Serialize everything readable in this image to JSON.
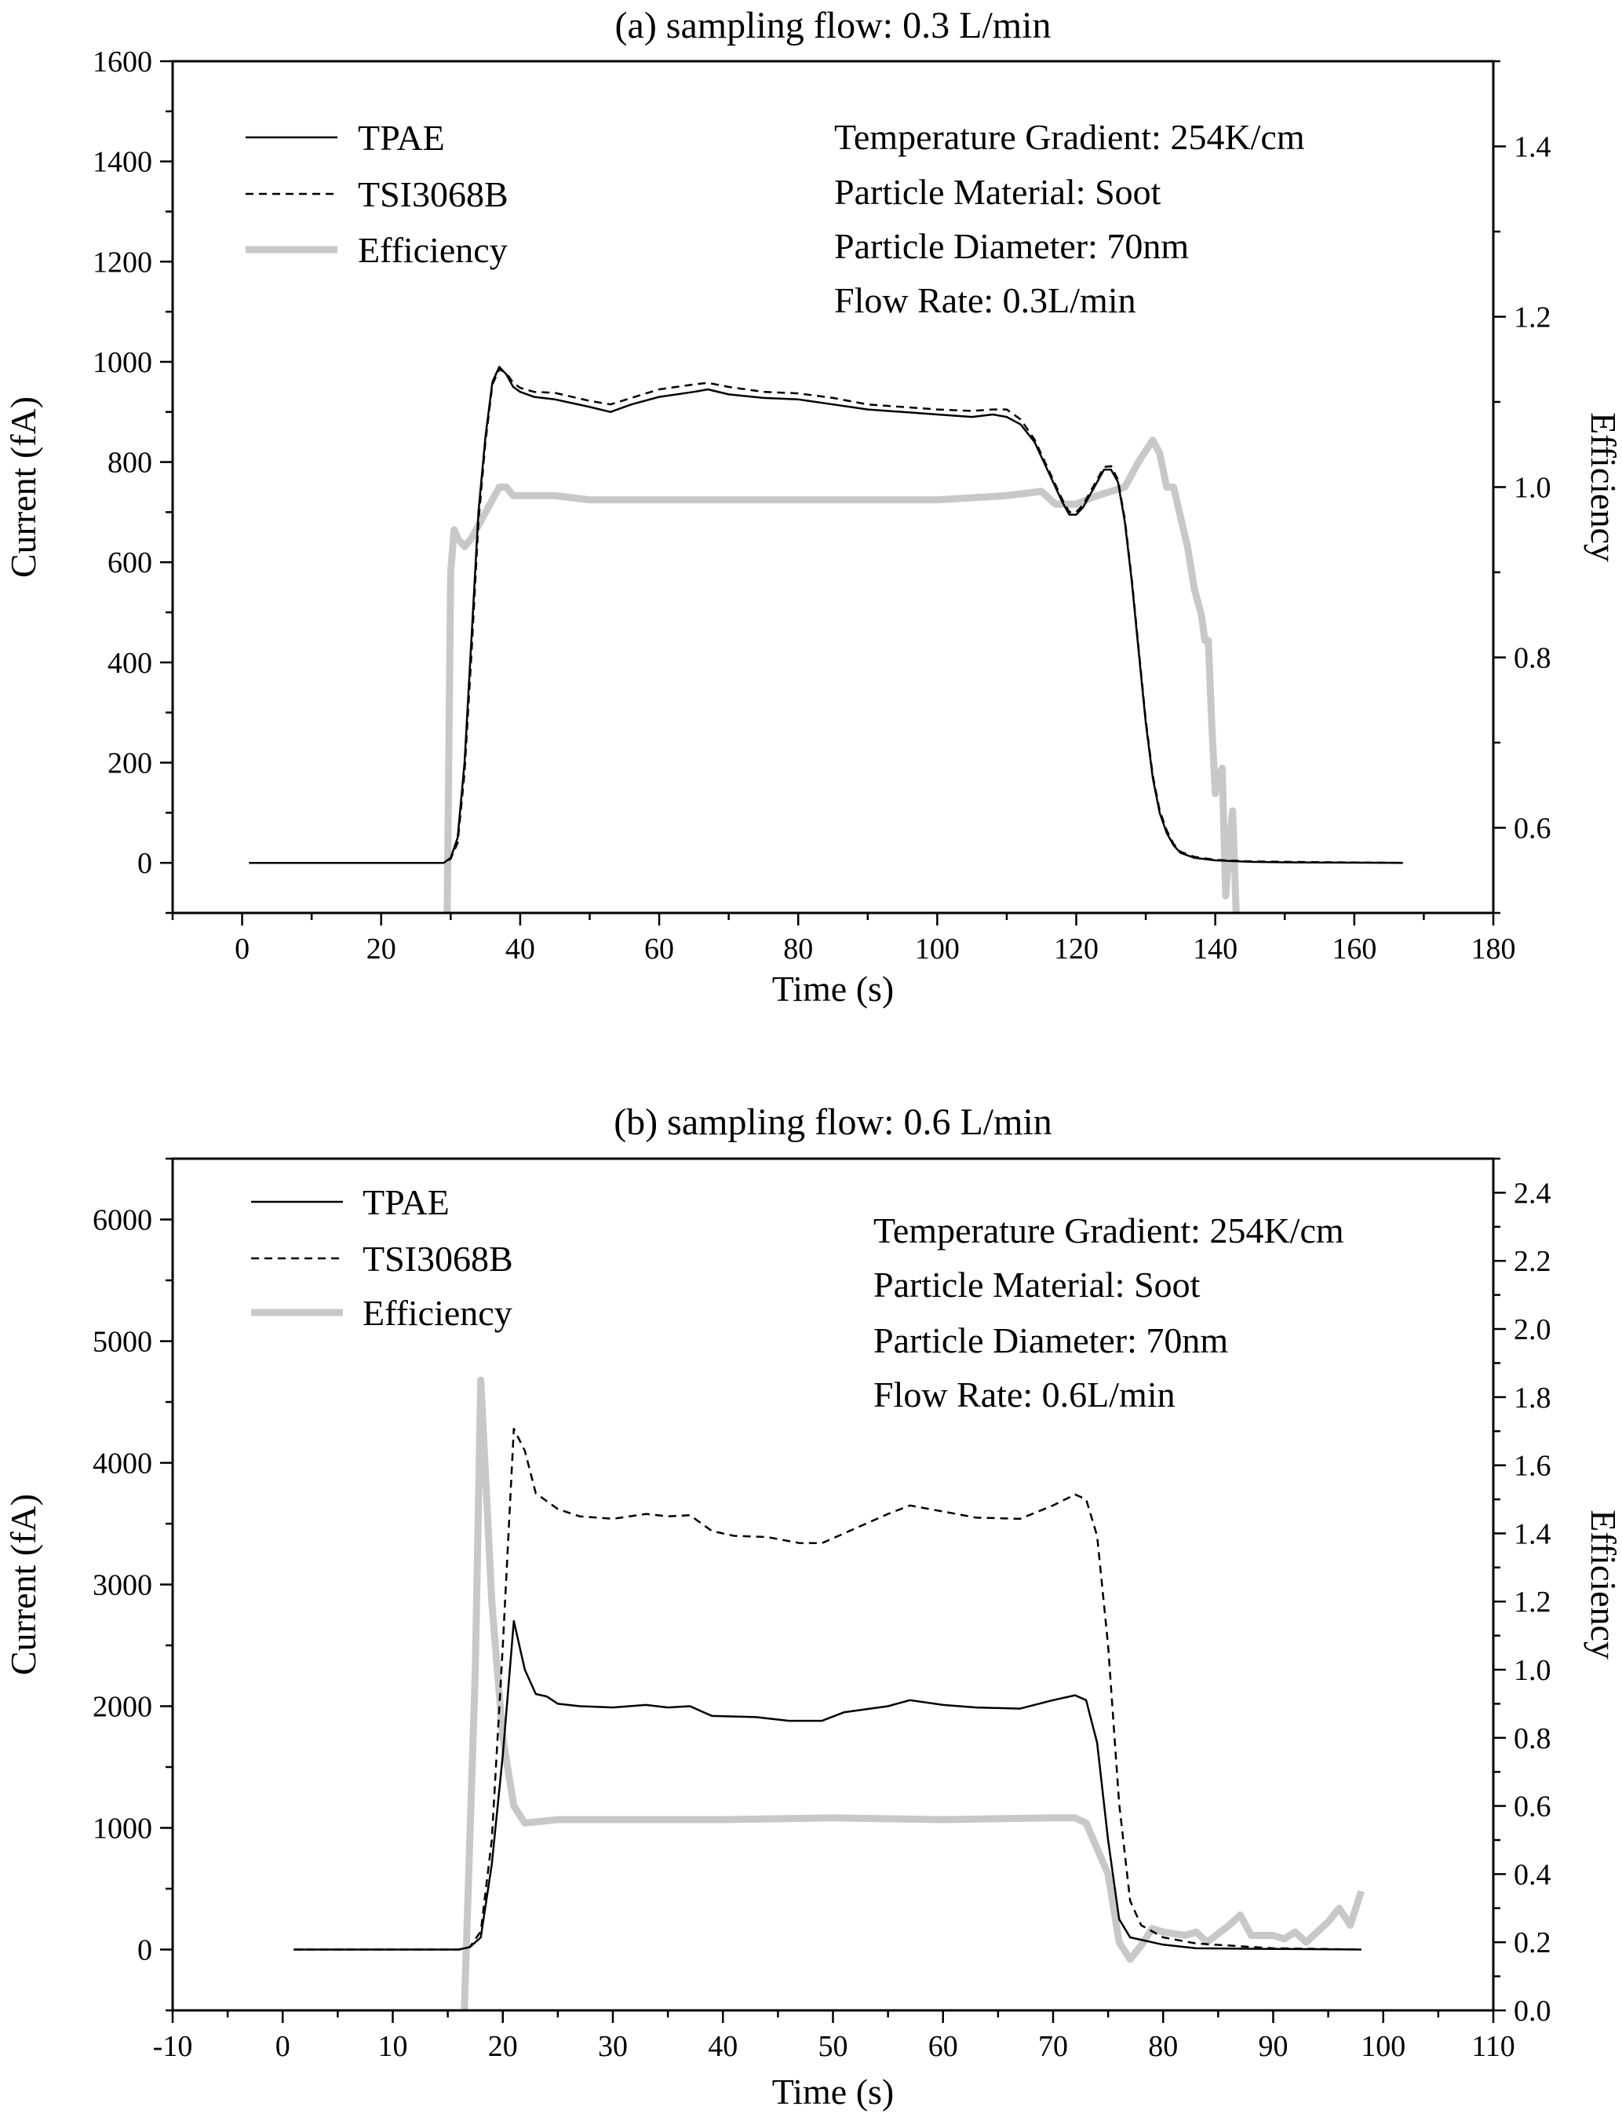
{
  "chart_data": [
    {
      "type": "line",
      "title": "(a) sampling flow: 0.3 L/min",
      "xlabel": "Time (s)",
      "ylabel": "Current (fA)",
      "y2label": "Efficiency",
      "xlim": [
        -10,
        180
      ],
      "ylim": [
        -100,
        1600
      ],
      "y2lim": [
        0.5,
        1.5
      ],
      "xticks": [
        0,
        20,
        40,
        60,
        80,
        100,
        120,
        140,
        160,
        180
      ],
      "yticks": [
        0,
        200,
        400,
        600,
        800,
        1000,
        1200,
        1400,
        1600
      ],
      "y2ticks": [
        "0.6",
        "0.8",
        "1.0",
        "1.2",
        "1.4"
      ],
      "grid": false,
      "legend_position": "top-left",
      "annotations": [
        "Temperature Gradient: 254K/cm",
        "Particle Material: Soot",
        "Particle Diameter: 70nm",
        "Flow Rate: 0.3L/min"
      ],
      "series": [
        {
          "name": "TPAE",
          "style": "solid",
          "color": "#000000",
          "axis": "left",
          "x": [
            1,
            29,
            30,
            31,
            32,
            33,
            34,
            35,
            36,
            37,
            38,
            39,
            40,
            42,
            45,
            50,
            53,
            56,
            60,
            65,
            67,
            70,
            75,
            80,
            85,
            90,
            95,
            100,
            105,
            108,
            110,
            112,
            114,
            116,
            118,
            119,
            120,
            121,
            123,
            124,
            125,
            126,
            127,
            128,
            129,
            130,
            131,
            132,
            133,
            134,
            135,
            137,
            140,
            145,
            150,
            167
          ],
          "y": [
            0,
            0,
            10,
            50,
            200,
            450,
            700,
            850,
            960,
            990,
            975,
            950,
            940,
            930,
            925,
            910,
            900,
            915,
            930,
            940,
            945,
            935,
            928,
            925,
            915,
            905,
            900,
            895,
            890,
            895,
            890,
            875,
            840,
            780,
            720,
            695,
            695,
            710,
            760,
            785,
            785,
            760,
            680,
            560,
            420,
            280,
            170,
            100,
            60,
            35,
            20,
            10,
            5,
            2,
            1,
            0
          ]
        },
        {
          "name": "TSI3068B",
          "style": "dashed",
          "color": "#000000",
          "axis": "left",
          "x": [
            1,
            29,
            30,
            31,
            32,
            33,
            34,
            35,
            36,
            37,
            38,
            39,
            40,
            42,
            45,
            50,
            53,
            56,
            60,
            65,
            67,
            70,
            75,
            80,
            85,
            90,
            95,
            100,
            105,
            108,
            110,
            112,
            114,
            116,
            118,
            119,
            120,
            121,
            123,
            124,
            125,
            126,
            127,
            128,
            129,
            130,
            131,
            132,
            133,
            134,
            135,
            137,
            140,
            145,
            150,
            167
          ],
          "y": [
            0,
            0,
            8,
            40,
            180,
            420,
            680,
            840,
            955,
            985,
            978,
            958,
            948,
            940,
            938,
            922,
            915,
            928,
            945,
            955,
            958,
            950,
            940,
            937,
            928,
            915,
            910,
            905,
            902,
            905,
            905,
            885,
            845,
            785,
            725,
            700,
            700,
            715,
            765,
            790,
            792,
            765,
            685,
            565,
            425,
            285,
            175,
            105,
            65,
            38,
            22,
            12,
            6,
            3,
            2,
            0
          ]
        },
        {
          "name": "Efficiency",
          "style": "solid-thick",
          "color": "#c8c8c8",
          "axis": "right",
          "x": [
            29.5,
            30,
            30.5,
            31,
            32,
            33,
            35,
            37,
            38,
            39,
            45,
            50,
            55,
            60,
            70,
            80,
            90,
            100,
            110,
            115,
            117,
            120,
            123,
            127,
            129,
            131,
            132,
            133,
            134,
            136,
            137,
            138,
            138.5,
            139,
            139.5,
            140,
            140.5,
            141,
            141.5,
            142,
            142.5,
            143
          ],
          "y": [
            0.5,
            0.9,
            0.95,
            0.94,
            0.93,
            0.94,
            0.97,
            1.0,
            1.0,
            0.99,
            0.99,
            0.985,
            0.985,
            0.985,
            0.985,
            0.985,
            0.985,
            0.985,
            0.99,
            0.995,
            0.98,
            0.98,
            0.99,
            1.0,
            1.03,
            1.055,
            1.04,
            1.0,
            1.0,
            0.93,
            0.88,
            0.85,
            0.82,
            0.82,
            0.72,
            0.64,
            0.66,
            0.67,
            0.52,
            0.58,
            0.62,
            0.5
          ]
        }
      ]
    },
    {
      "type": "line",
      "title": "(b) sampling flow: 0.6 L/min",
      "xlabel": "Time (s)",
      "ylabel": "Current (fA)",
      "y2label": "Efficiency",
      "xlim": [
        -10,
        110
      ],
      "ylim": [
        -500,
        6500
      ],
      "y2lim": [
        0,
        2.5
      ],
      "xticks": [
        -10,
        0,
        10,
        20,
        30,
        40,
        50,
        60,
        70,
        80,
        90,
        100,
        110
      ],
      "yticks": [
        0,
        1000,
        2000,
        3000,
        4000,
        5000,
        6000
      ],
      "y2ticks": [
        "0.0",
        "0.2",
        "0.4",
        "0.6",
        "0.8",
        "1.0",
        "1.2",
        "1.4",
        "1.6",
        "1.8",
        "2.0",
        "2.2",
        "2.4"
      ],
      "grid": false,
      "legend_position": "top-left",
      "annotations": [
        "Temperature Gradient: 254K/cm",
        "Particle Material: Soot",
        "Particle Diameter: 70nm",
        "Flow Rate: 0.6L/min"
      ],
      "series": [
        {
          "name": "TPAE",
          "style": "solid",
          "color": "#000000",
          "axis": "left",
          "x": [
            1,
            16,
            17,
            18,
            19,
            20,
            21,
            22,
            23,
            24,
            25,
            27,
            30,
            33,
            35,
            37,
            39,
            43,
            46,
            49,
            51,
            55,
            57,
            60,
            63,
            67,
            70,
            72,
            73,
            74,
            75,
            76,
            77,
            80,
            83,
            90,
            98
          ],
          "y": [
            0,
            0,
            20,
            100,
            700,
            1600,
            2700,
            2300,
            2100,
            2080,
            2020,
            2000,
            1990,
            2010,
            1990,
            2000,
            1920,
            1910,
            1880,
            1880,
            1950,
            2000,
            2050,
            2010,
            1990,
            1980,
            2050,
            2090,
            2050,
            1700,
            900,
            250,
            100,
            40,
            10,
            5,
            0
          ]
        },
        {
          "name": "TSI3068B",
          "style": "dashed",
          "color": "#000000",
          "axis": "left",
          "x": [
            1,
            16,
            17,
            18,
            19,
            20,
            21,
            22,
            23,
            25,
            27,
            30,
            33,
            35,
            37,
            39,
            41,
            44,
            47,
            49,
            51,
            55,
            57,
            60,
            63,
            67,
            70,
            72,
            73,
            74,
            75,
            76,
            77,
            78,
            80,
            83,
            90,
            98
          ],
          "y": [
            0,
            0,
            20,
            150,
            900,
            2500,
            4280,
            4100,
            3750,
            3620,
            3560,
            3540,
            3580,
            3560,
            3570,
            3440,
            3400,
            3390,
            3340,
            3340,
            3420,
            3580,
            3650,
            3600,
            3550,
            3540,
            3650,
            3740,
            3700,
            3400,
            2500,
            1200,
            400,
            200,
            100,
            50,
            10,
            0
          ]
        },
        {
          "name": "Efficiency",
          "style": "solid-thick",
          "color": "#c8c8c8",
          "axis": "right",
          "x": [
            16.5,
            17.5,
            18,
            19,
            20,
            21,
            22,
            25,
            30,
            40,
            50,
            60,
            70,
            72,
            73,
            75,
            76,
            77,
            78,
            79,
            80,
            82,
            83,
            84,
            86,
            87,
            88,
            90,
            91,
            92,
            93,
            95,
            96,
            97,
            98
          ],
          "y": [
            0,
            1.0,
            1.85,
            1.2,
            0.8,
            0.6,
            0.55,
            0.56,
            0.56,
            0.56,
            0.565,
            0.56,
            0.565,
            0.565,
            0.55,
            0.4,
            0.2,
            0.15,
            0.19,
            0.24,
            0.23,
            0.22,
            0.23,
            0.2,
            0.25,
            0.28,
            0.22,
            0.22,
            0.21,
            0.23,
            0.2,
            0.26,
            0.3,
            0.25,
            0.35
          ]
        }
      ]
    }
  ]
}
